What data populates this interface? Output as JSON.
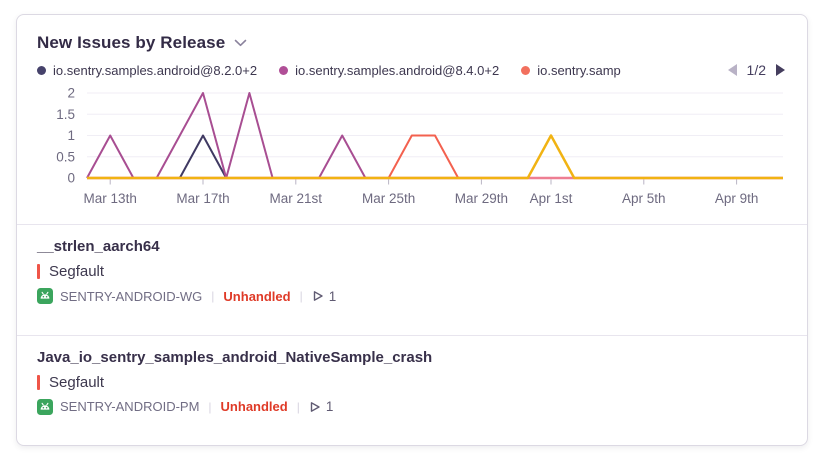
{
  "widget": {
    "title": "New Issues by Release",
    "pagination": {
      "label": "1/2"
    }
  },
  "legend": {
    "items": [
      {
        "label": "io.sentry.samples.android@8.2.0+2",
        "color": "#46426B"
      },
      {
        "label": "io.sentry.samples.android@8.4.0+2",
        "color": "#B04F97"
      },
      {
        "label": "io.sentry.samp",
        "color": "#F2705E"
      }
    ]
  },
  "chart_data": {
    "type": "line",
    "title": "New Issues by Release",
    "x": [
      "Mar 12",
      "Mar 13",
      "Mar 14",
      "Mar 15",
      "Mar 16",
      "Mar 17",
      "Mar 18",
      "Mar 19",
      "Mar 20",
      "Mar 21",
      "Mar 22",
      "Mar 23",
      "Mar 24",
      "Mar 25",
      "Mar 26",
      "Mar 27",
      "Mar 28",
      "Mar 29",
      "Mar 30",
      "Mar 31",
      "Apr 1",
      "Apr 2",
      "Apr 3",
      "Apr 4",
      "Apr 5",
      "Apr 6",
      "Apr 7",
      "Apr 8",
      "Apr 9",
      "Apr 10",
      "Apr 11"
    ],
    "series": [
      {
        "name": "io.sentry.samples.android@8.2.0+2",
        "color": "#3F3962",
        "width": 2,
        "values": [
          0,
          0,
          0,
          0,
          0,
          1,
          0,
          0,
          0,
          0,
          0,
          0,
          0,
          0,
          0,
          0,
          0,
          0,
          0,
          0,
          0,
          0,
          0,
          0,
          0,
          0,
          0,
          0,
          0,
          0,
          0
        ]
      },
      {
        "name": "io.sentry.samples.android@8.4.0+2",
        "color": "#A84E92",
        "width": 2,
        "values": [
          0,
          1,
          0,
          0,
          1,
          2,
          0,
          2,
          0,
          0,
          0,
          1,
          0,
          0,
          0,
          0,
          0,
          0,
          0,
          0,
          0,
          0,
          0,
          0,
          0,
          0,
          0,
          0,
          0,
          0,
          0
        ]
      },
      {
        "name": "io.sentry.samp",
        "color": "#F3614F",
        "width": 2,
        "values": [
          0,
          0,
          0,
          0,
          0,
          0,
          0,
          0,
          0,
          0,
          0,
          0,
          0,
          0,
          1,
          1,
          0,
          0,
          0,
          0,
          0,
          0,
          0,
          0,
          0,
          0,
          0,
          0,
          0,
          0,
          0
        ]
      },
      {
        "name": "",
        "color": "#EE7E92",
        "width": 2.5,
        "values": [
          0,
          0,
          0,
          0,
          0,
          0,
          0,
          0,
          0,
          0,
          0,
          0,
          0,
          0,
          0,
          0,
          0,
          0,
          0,
          0,
          0,
          0,
          0,
          0,
          0,
          0,
          0,
          0,
          0,
          0,
          0
        ]
      },
      {
        "name": "",
        "color": "#F1B313",
        "width": 2.5,
        "values": [
          0,
          0,
          0,
          0,
          0,
          0,
          0,
          0,
          0,
          0,
          0,
          0,
          0,
          0,
          0,
          0,
          0,
          0,
          0,
          0,
          1,
          0,
          0,
          0,
          0,
          0,
          0,
          0,
          0,
          0,
          0
        ]
      }
    ],
    "yticks": [
      0,
      0.5,
      1,
      1.5,
      2
    ],
    "ylim": [
      0,
      2
    ],
    "xtick_labels": [
      "Mar 13th",
      "Mar 17th",
      "Mar 21st",
      "Mar 25th",
      "Mar 29th",
      "Apr 1st",
      "Apr 5th",
      "Apr 9th"
    ],
    "xtick_indices": [
      1,
      5,
      9,
      13,
      17,
      20,
      24,
      28
    ],
    "grid": true,
    "legend_position": "top"
  },
  "issues": [
    {
      "title": "__strlen_aarch64",
      "level": "Segfault",
      "project": "SENTRY-ANDROID-WG",
      "handled_status": "Unhandled",
      "event_count": "1"
    },
    {
      "title": "Java_io_sentry_samples_android_NativeSample_crash",
      "level": "Segfault",
      "project": "SENTRY-ANDROID-PM",
      "handled_status": "Unhandled",
      "event_count": "1"
    }
  ]
}
